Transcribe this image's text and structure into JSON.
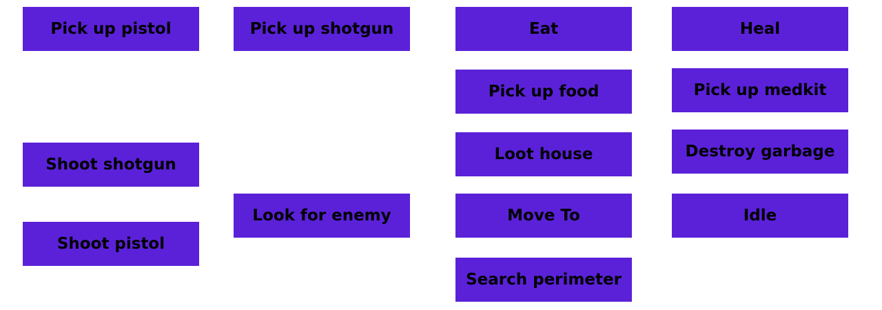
{
  "button_color": "#5b21d9",
  "text_color": "#000000",
  "actions": {
    "pick_up_pistol": "Pick up pistol",
    "shoot_shotgun": "Shoot shotgun",
    "shoot_pistol": "Shoot pistol",
    "pick_up_shotgun": "Pick up shotgun",
    "look_for_enemy": "Look for enemy",
    "eat": "Eat",
    "pick_up_food": "Pick up food",
    "loot_house": "Loot house",
    "move_to": "Move To",
    "search_perimeter": "Search perimeter",
    "heal": "Heal",
    "pick_up_medkit": "Pick up medkit",
    "destroy_garbage": "Destroy garbage",
    "idle": "Idle"
  }
}
